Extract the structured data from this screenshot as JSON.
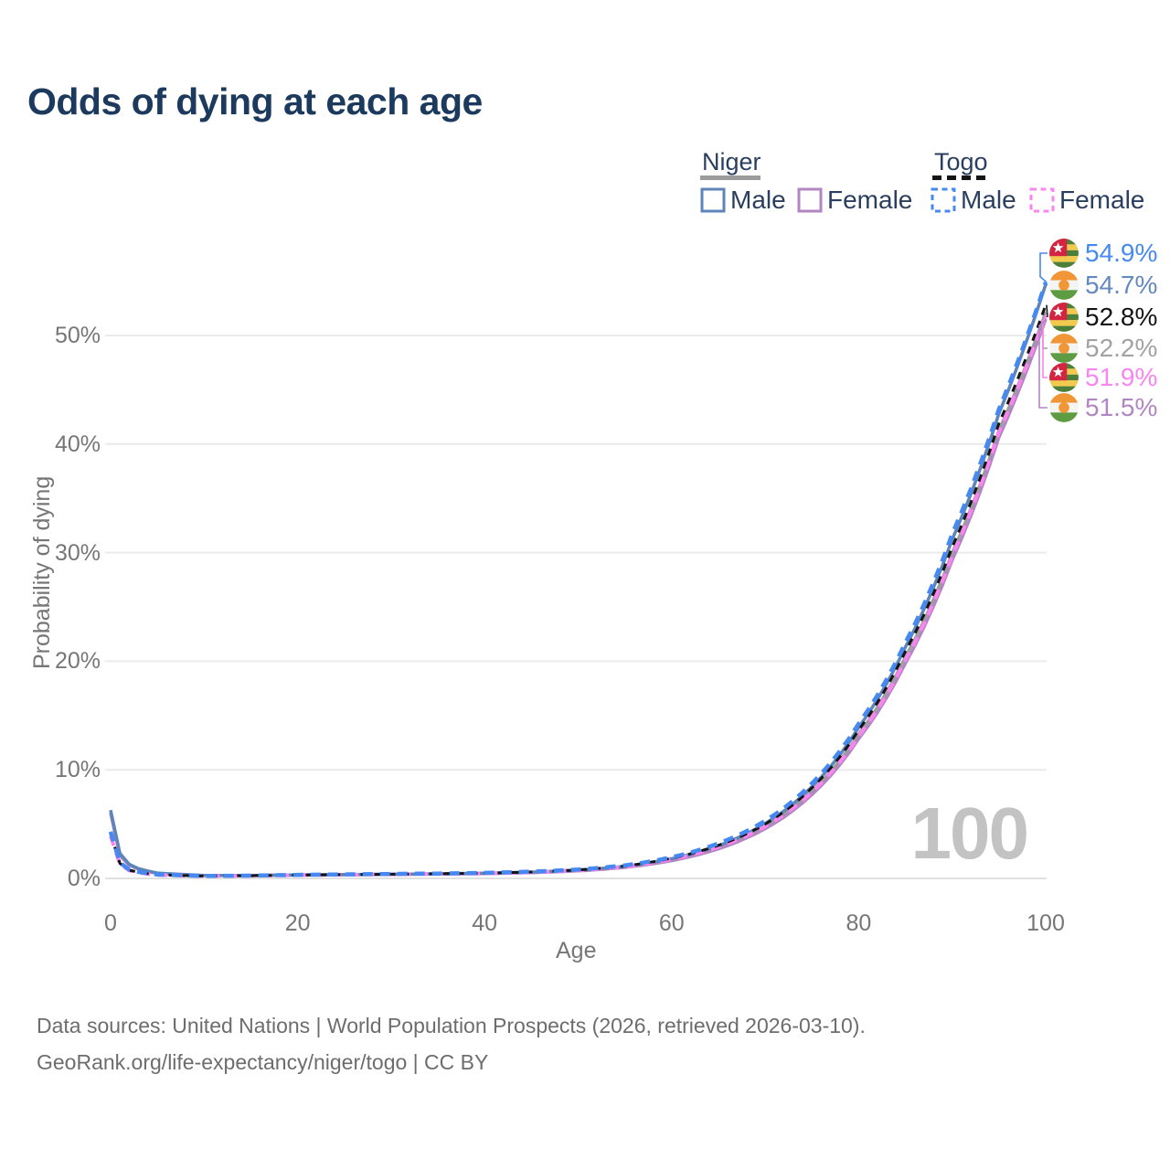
{
  "title": "Odds of dying at each age",
  "watermark": "100",
  "legend": {
    "niger": {
      "label": "Niger",
      "male": "Male",
      "female": "Female"
    },
    "togo": {
      "label": "Togo",
      "male": "Male",
      "female": "Female"
    }
  },
  "colors": {
    "title": "#1c3a5e",
    "legend_text": "#2a3f5f",
    "axis_text": "#767676",
    "grid": "#ebebeb",
    "zero_line": "#e1e1e1",
    "watermark": "#c3c3c3",
    "niger_male": "#5d85b9",
    "niger_female": "#b286c2",
    "niger_both": "#9c9c9c",
    "togo_male": "#4689f2",
    "togo_female": "#fa85f0",
    "togo_both": "#141414",
    "label_togo_male": "#4689f2",
    "label_niger_male": "#6389c1",
    "label_togo_both": "#141414",
    "label_niger_both": "#a2a2a2",
    "label_togo_female": "#fa85f0",
    "label_niger_female": "#b286c2",
    "flag_togo_green": "#4c8038",
    "flag_togo_yellow": "#f3c94e",
    "flag_togo_red": "#d52441",
    "flag_niger_orange": "#f09637",
    "flag_niger_white": "#f4f4f2",
    "flag_niger_green": "#5d9c42"
  },
  "y_axis": {
    "title": "Probability of dying",
    "ticks": [
      "0%",
      "10%",
      "20%",
      "30%",
      "40%",
      "50%"
    ]
  },
  "x_axis": {
    "title": "Age",
    "ticks": [
      "0",
      "20",
      "40",
      "60",
      "80",
      "100"
    ]
  },
  "end_labels": [
    {
      "flag": "togo",
      "value": "54.9%",
      "series": "togo_male",
      "color_key": "label_togo_male"
    },
    {
      "flag": "niger",
      "value": "54.7%",
      "series": "niger_male",
      "color_key": "label_niger_male"
    },
    {
      "flag": "togo",
      "value": "52.8%",
      "series": "togo_both",
      "color_key": "label_togo_both"
    },
    {
      "flag": "niger",
      "value": "52.2%",
      "series": "niger_both",
      "color_key": "label_niger_both"
    },
    {
      "flag": "togo",
      "value": "51.9%",
      "series": "togo_female",
      "color_key": "label_togo_female"
    },
    {
      "flag": "niger",
      "value": "51.5%",
      "series": "niger_female",
      "color_key": "label_niger_female"
    }
  ],
  "footer": {
    "line1": "Data sources: United Nations | World Population Prospects (2026, retrieved 2026-03-10).",
    "line2": "GeoRank.org/life-expectancy/niger/togo | CC BY"
  },
  "chart_data": {
    "type": "line",
    "title": "Odds of dying at each age",
    "xlabel": "Age",
    "ylabel": "Probability of dying",
    "x_ticks": [
      0,
      20,
      40,
      60,
      80,
      100
    ],
    "y_ticks_percent": [
      0,
      10,
      20,
      30,
      40,
      50
    ],
    "xlim": [
      0,
      100
    ],
    "ylim_percent": [
      0,
      57
    ],
    "grid": true,
    "ages": [
      0,
      1,
      2,
      3,
      5,
      10,
      15,
      20,
      25,
      30,
      35,
      40,
      45,
      50,
      55,
      60,
      65,
      70,
      75,
      80,
      85,
      90,
      95,
      100
    ],
    "series": [
      {
        "id": "niger_both",
        "country": "Niger",
        "sex": "Both",
        "line": "solid",
        "end_value_percent": 52.2,
        "values_percent": [
          6.15,
          2.2,
          1.25,
          0.87,
          0.48,
          0.27,
          0.27,
          0.31,
          0.34,
          0.37,
          0.41,
          0.46,
          0.55,
          0.72,
          1.06,
          1.72,
          2.86,
          4.8,
          8.05,
          13.3,
          20.4,
          30.0,
          41.3,
          52.2
        ]
      },
      {
        "id": "niger_female",
        "country": "Niger",
        "sex": "Female",
        "line": "solid",
        "end_value_percent": 51.5,
        "values_percent": [
          6.0,
          2.1,
          1.2,
          0.84,
          0.46,
          0.26,
          0.26,
          0.3,
          0.33,
          0.36,
          0.4,
          0.44,
          0.53,
          0.69,
          1.01,
          1.63,
          2.72,
          4.58,
          7.72,
          12.85,
          19.8,
          29.3,
          40.6,
          51.5
        ]
      },
      {
        "id": "niger_male",
        "country": "Niger",
        "sex": "Male",
        "line": "solid",
        "end_value_percent": 54.7,
        "values_percent": [
          6.3,
          2.3,
          1.3,
          0.9,
          0.5,
          0.28,
          0.28,
          0.33,
          0.36,
          0.39,
          0.43,
          0.48,
          0.58,
          0.76,
          1.12,
          1.82,
          3.02,
          5.05,
          8.45,
          13.9,
          21.3,
          31.2,
          42.8,
          54.7
        ]
      },
      {
        "id": "togo_female",
        "country": "Togo",
        "sex": "Female",
        "line": "dashed",
        "end_value_percent": 51.9,
        "values_percent": [
          3.9,
          1.3,
          0.72,
          0.54,
          0.32,
          0.21,
          0.24,
          0.3,
          0.34,
          0.37,
          0.41,
          0.46,
          0.56,
          0.74,
          1.08,
          1.76,
          2.9,
          4.78,
          7.95,
          13.1,
          20.1,
          29.7,
          41.1,
          51.9
        ]
      },
      {
        "id": "togo_both",
        "country": "Togo",
        "sex": "Both",
        "line": "dashed",
        "end_value_percent": 52.8,
        "values_percent": [
          4.1,
          1.38,
          0.76,
          0.57,
          0.34,
          0.22,
          0.25,
          0.31,
          0.35,
          0.39,
          0.43,
          0.48,
          0.59,
          0.78,
          1.14,
          1.86,
          3.05,
          5.0,
          8.35,
          13.65,
          20.9,
          30.5,
          41.9,
          52.8
        ]
      },
      {
        "id": "togo_male",
        "country": "Togo",
        "sex": "Male",
        "line": "dashed",
        "end_value_percent": 54.9,
        "values_percent": [
          4.3,
          1.45,
          0.8,
          0.6,
          0.36,
          0.23,
          0.26,
          0.33,
          0.37,
          0.41,
          0.45,
          0.51,
          0.62,
          0.82,
          1.2,
          1.95,
          3.22,
          5.3,
          8.75,
          14.25,
          21.7,
          31.7,
          43.2,
          54.9
        ]
      }
    ]
  }
}
